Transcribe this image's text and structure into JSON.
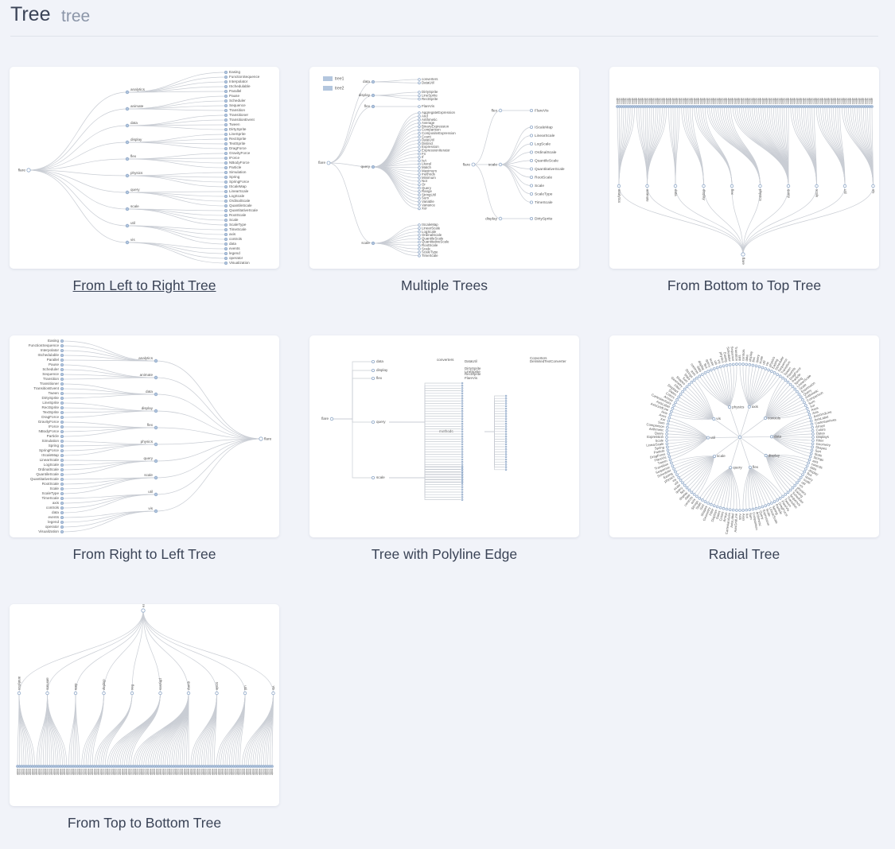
{
  "header": {
    "title": "Tree",
    "subtitle": "tree"
  },
  "cards": [
    {
      "caption": "From Left to Right Tree",
      "root": "flare",
      "branches": [
        "analytics",
        "animate",
        "data",
        "display",
        "flex",
        "physics",
        "query",
        "scale",
        "util",
        "vis"
      ],
      "leaves": [
        "Easing",
        "FunctionSequence",
        "Interpolator",
        "ISchedulable",
        "Parallel",
        "Pause",
        "Scheduler",
        "Sequence",
        "Transition",
        "Transitioner",
        "TransitionEvent",
        "Tween",
        "DirtySprite",
        "LineSprite",
        "RectSprite",
        "TextSprite",
        "DragForce",
        "GravityForce",
        "IForce",
        "NBodyForce",
        "Particle",
        "Simulation",
        "Spring",
        "SpringForce",
        "IScaleMap",
        "LinearScale",
        "LogScale",
        "OrdinalScale",
        "QuantileScale",
        "QuantitativeScale",
        "RootScale",
        "Scale",
        "ScaleType",
        "TimeScale",
        "axis",
        "controls",
        "data",
        "events",
        "legend",
        "operator",
        "Visualization"
      ]
    },
    {
      "caption": "Multiple Trees",
      "legend": [
        "tree1",
        "tree2"
      ],
      "tree1": {
        "root": "flare",
        "branches": [
          "data",
          "display",
          "flex",
          "query",
          "scale"
        ],
        "data_leaves": [
          "converters",
          "DataUtil"
        ],
        "display_leaves": [
          "DirtySprite",
          "LineSprite",
          "RectSprite"
        ],
        "flex_leaves": [
          "FlareVis"
        ],
        "query_leaves": [
          "AggregateExpression",
          "And",
          "Arithmetic",
          "Average",
          "BinaryExpression",
          "Comparison",
          "CompositeExpression",
          "Count",
          "DateUtil",
          "Distinct",
          "Expression",
          "ExpressionIterator",
          "Fn",
          "If",
          "IsA",
          "Literal",
          "Match",
          "Maximum",
          "methods",
          "Minimum",
          "Not",
          "Or",
          "Query",
          "Range",
          "StringUtil",
          "Sum",
          "Variable",
          "Variance",
          "Xor"
        ],
        "scale_leaves": [
          "IScaleMap",
          "LinearScale",
          "LogScale",
          "OrdinalScale",
          "QuantileScale",
          "QuantitativeScale",
          "RootScale",
          "Scale",
          "ScaleType",
          "TimeScale"
        ]
      },
      "tree2": {
        "root": "flare",
        "branches": [
          "flex",
          "scale",
          "display"
        ],
        "flex_leaves": [
          "FlareVis"
        ],
        "scale_leaves": [
          "IScaleMap",
          "LinearScale",
          "LogScale",
          "OrdinalScale",
          "QuantileScale",
          "QuantitativeScale",
          "RootScale",
          "Scale",
          "ScaleType",
          "TimeScale"
        ],
        "display_leaves": [
          "DirtySprite"
        ]
      }
    },
    {
      "caption": "From Bottom to Top Tree",
      "root": "flare",
      "branches": [
        "analytics",
        "animate",
        "data",
        "display",
        "flex",
        "physics",
        "query",
        "scale",
        "util",
        "vis"
      ]
    },
    {
      "caption": "From Right to Left Tree",
      "root": "flare",
      "branches": [
        "analytics",
        "animate",
        "data",
        "display",
        "flex",
        "physics",
        "query",
        "scale",
        "util",
        "vis"
      ],
      "leaves": [
        "Easing",
        "FunctionSequence",
        "Interpolator",
        "ISchedulable",
        "Parallel",
        "Pause",
        "Scheduler",
        "Sequence",
        "Transition",
        "Transitioner",
        "TransitionEvent",
        "Tween",
        "DirtySprite",
        "LineSprite",
        "RectSprite",
        "TextSprite",
        "DragForce",
        "GravityForce",
        "IForce",
        "NBodyForce",
        "Particle",
        "Simulation",
        "Spring",
        "SpringForce",
        "IScaleMap",
        "LinearScale",
        "LogScale",
        "OrdinalScale",
        "QuantileScale",
        "QuantitativeScale",
        "RootScale",
        "Scale",
        "ScaleType",
        "TimeScale",
        "axis",
        "controls",
        "data",
        "events",
        "legend",
        "operator",
        "Visualization"
      ]
    },
    {
      "caption": "Tree with Polyline Edge",
      "root": "flare",
      "branches": [
        "data",
        "display",
        "flex",
        "query",
        "scale"
      ],
      "sub": [
        "converters",
        "methods"
      ],
      "leaves": [
        "Converters",
        "DelimitedTextConverter",
        "DataUtil",
        "DirtySprite",
        "LineSprite",
        "RectSprite",
        "FlareVis"
      ]
    },
    {
      "caption": "Radial Tree",
      "labels": [
        "axis",
        "controls",
        "data",
        "display",
        "flex",
        "query",
        "scale",
        "util",
        "vis",
        "physics",
        "Easing",
        "Scheduler",
        "Sequence",
        "Transition",
        "Tween",
        "FlareVis",
        "DragForce",
        "Particle",
        "Spring",
        "LinearScale",
        "Scale",
        "Expression",
        "Query",
        "Arithmetic",
        "Comparison",
        "Sum",
        "Xor",
        "Axes",
        "Axis",
        "AxisGridLine",
        "AxisLabel",
        "CartesianAxes",
        "Arrays",
        "Colors",
        "Dates",
        "Displays",
        "Filter",
        "Geometry",
        "Shapes",
        "Sort",
        "Stats",
        "Strings"
      ]
    },
    {
      "caption": "From Top to Bottom Tree",
      "root": "flare",
      "branches": [
        "analytics",
        "animate",
        "data",
        "display",
        "flex",
        "physics",
        "query",
        "scale",
        "util",
        "vis"
      ]
    }
  ]
}
